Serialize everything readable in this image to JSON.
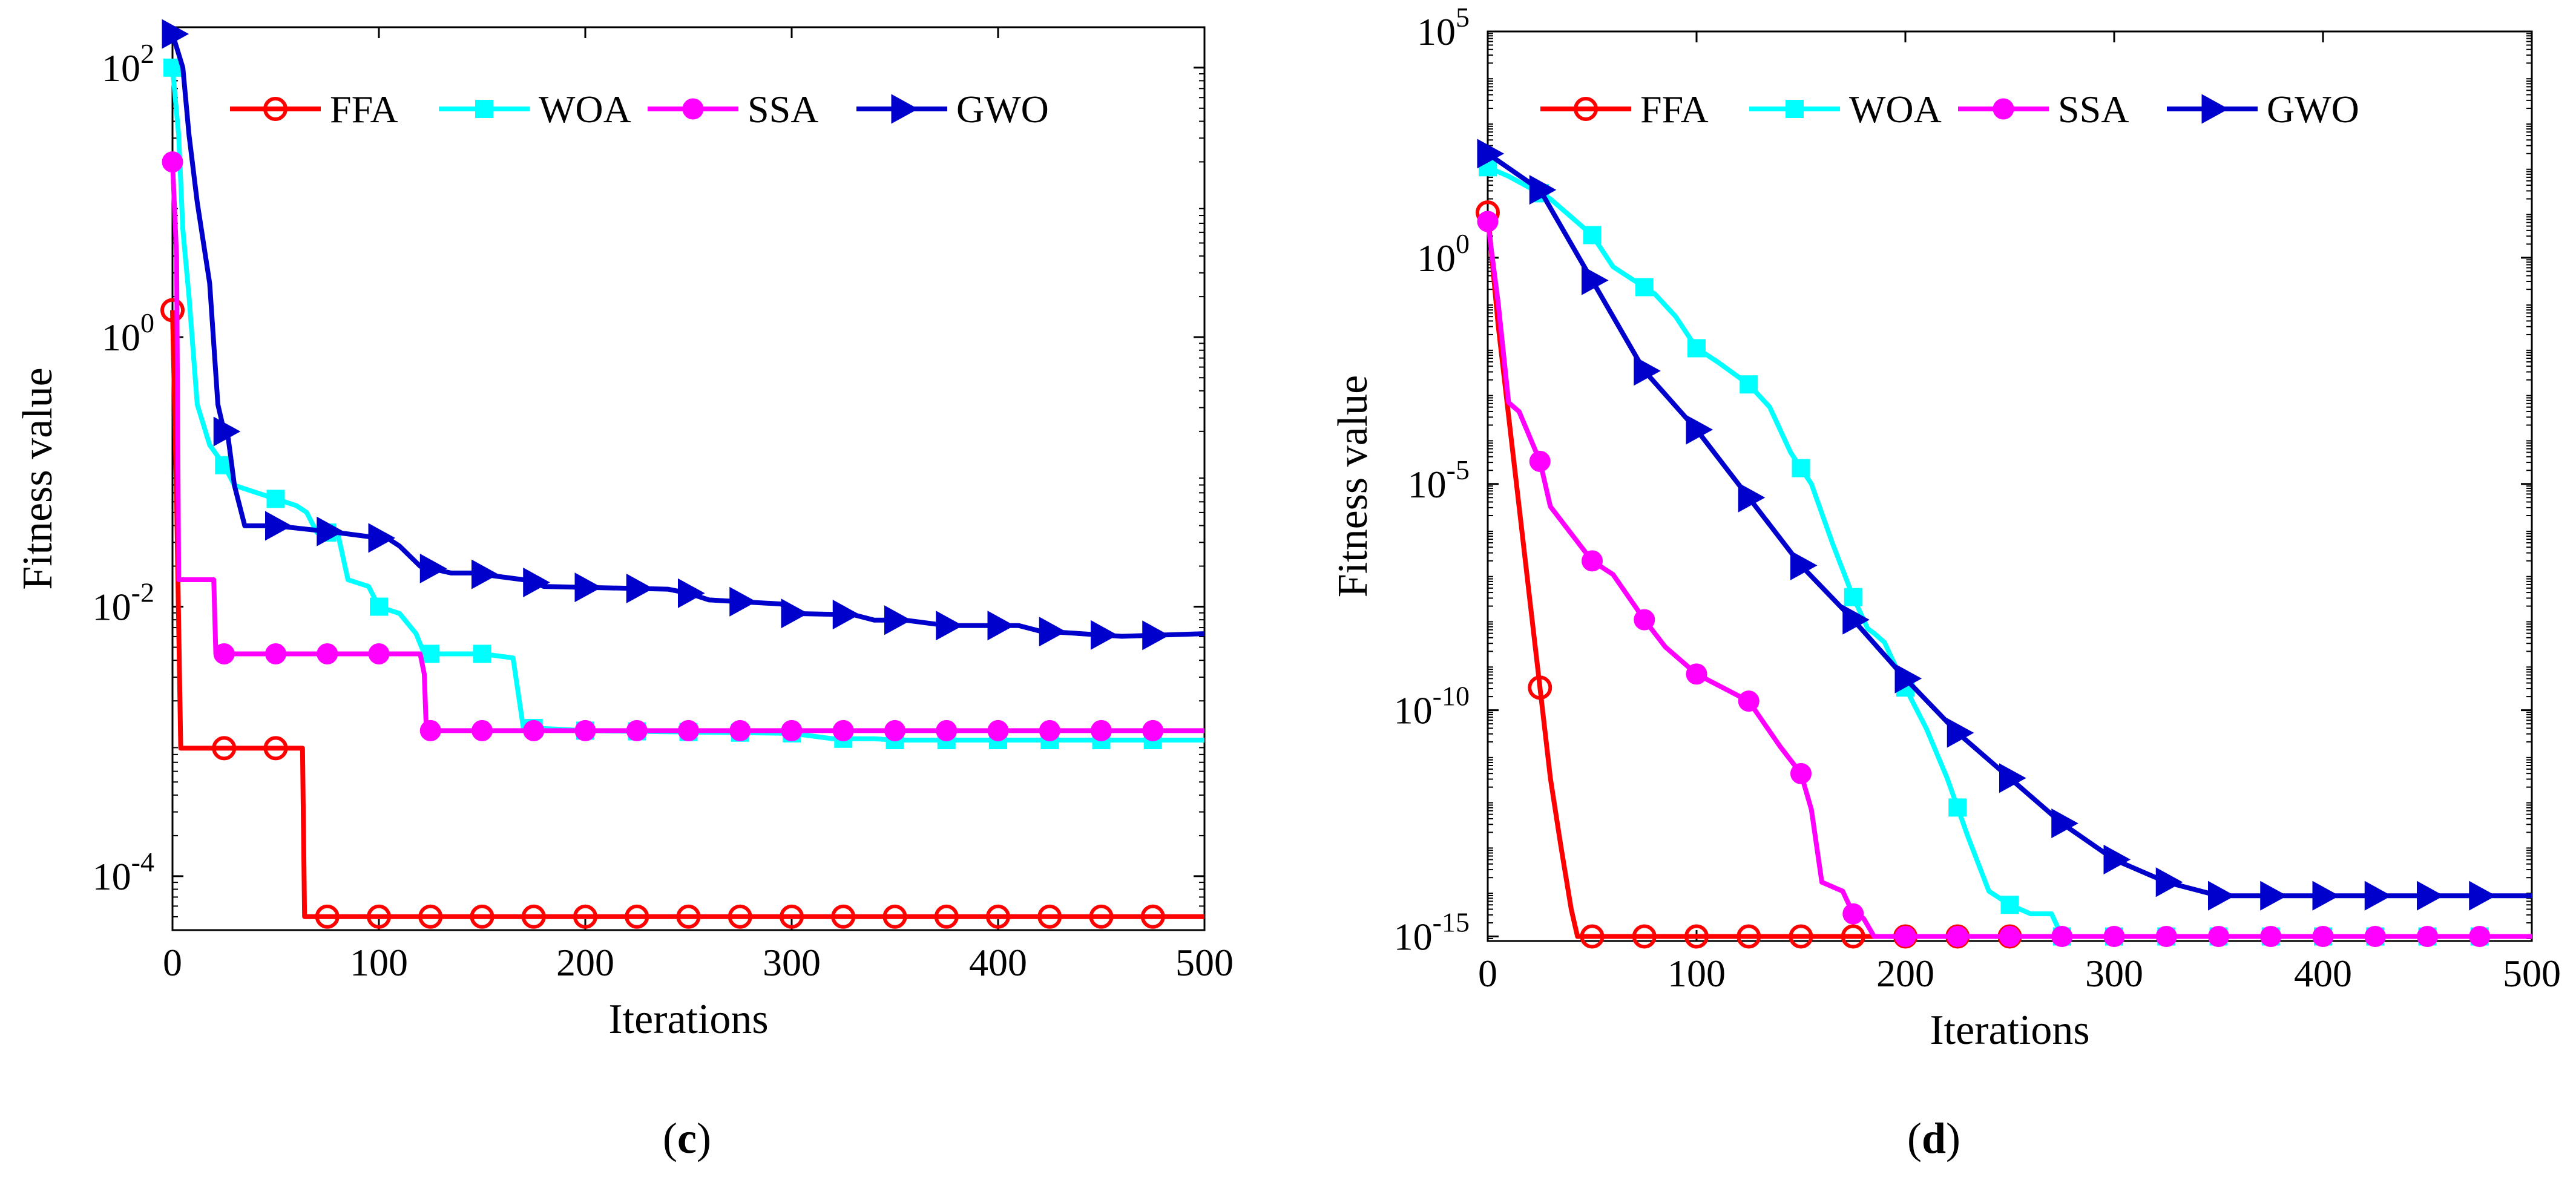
{
  "chart_data": [
    {
      "id": "c",
      "type": "line",
      "panel_label_open": "(",
      "panel_label": "c",
      "panel_label_close": ")",
      "xlabel": "Iterations",
      "ylabel": "Fitness value",
      "xlim": [
        0,
        500
      ],
      "ylog_lim": [
        -4.4,
        2.3
      ],
      "x_ticks": [
        0,
        100,
        200,
        300,
        400,
        500
      ],
      "x_tick_labels": [
        "0",
        "100",
        "200",
        "300",
        "400",
        "500"
      ],
      "y_ticks": [
        -4,
        -2,
        0,
        2
      ],
      "y_tick_labels": [
        {
          "base": "10",
          "exp": "-4"
        },
        {
          "base": "10",
          "exp": "-2"
        },
        {
          "base": "10",
          "exp": "0"
        },
        {
          "base": "10",
          "exp": "2"
        }
      ],
      "legend": [
        "FFA",
        "WOA",
        "SSA",
        "GWO"
      ],
      "series": [
        {
          "name": "FFA",
          "color": "#ff0000",
          "marker": "circle-open",
          "x": [
            0,
            2,
            4,
            63,
            64,
            500
          ],
          "log10y": [
            0.2,
            -1.2,
            -3.05,
            -3.05,
            -4.3,
            -4.3
          ],
          "marker_x": [
            0,
            25,
            50,
            75,
            100,
            125,
            150,
            175,
            200,
            225,
            250,
            275,
            300,
            325,
            350,
            375,
            400,
            425,
            450,
            475
          ]
        },
        {
          "name": "WOA",
          "color": "#00ffff",
          "marker": "square-filled",
          "x": [
            0,
            3,
            5,
            8,
            12,
            18,
            25,
            30,
            40,
            50,
            60,
            65,
            70,
            80,
            85,
            95,
            100,
            110,
            118,
            122,
            150,
            165,
            170,
            175,
            200,
            250,
            300,
            320,
            340,
            350,
            400,
            450,
            500
          ],
          "log10y": [
            2.0,
            1.5,
            0.8,
            0.3,
            -0.5,
            -0.8,
            -0.95,
            -1.1,
            -1.15,
            -1.2,
            -1.25,
            -1.3,
            -1.45,
            -1.45,
            -1.8,
            -1.85,
            -2.0,
            -2.05,
            -2.2,
            -2.35,
            -2.35,
            -2.38,
            -2.9,
            -2.9,
            -2.92,
            -2.93,
            -2.94,
            -2.98,
            -2.98,
            -2.99,
            -2.99,
            -2.99,
            -2.99
          ],
          "marker_x": [
            0,
            25,
            50,
            75,
            100,
            125,
            150,
            175,
            200,
            225,
            250,
            275,
            300,
            325,
            350,
            375,
            400,
            425,
            450,
            475
          ]
        },
        {
          "name": "SSA",
          "color": "#ff00ff",
          "marker": "circle-filled",
          "x": [
            0,
            2,
            3,
            8,
            9,
            20,
            21,
            118,
            120,
            122,
            123,
            500
          ],
          "log10y": [
            1.3,
            0.6,
            -1.8,
            -1.8,
            -1.8,
            -1.8,
            -2.35,
            -2.35,
            -2.35,
            -2.5,
            -2.92,
            -2.92
          ],
          "marker_x": [
            0,
            25,
            50,
            75,
            100,
            125,
            150,
            175,
            200,
            225,
            250,
            275,
            300,
            325,
            350,
            375,
            400,
            425,
            450,
            475
          ]
        },
        {
          "name": "GWO",
          "color": "#0000cd",
          "marker": "triangle-right",
          "x": [
            0,
            5,
            8,
            12,
            18,
            22,
            25,
            27,
            30,
            35,
            50,
            80,
            105,
            110,
            120,
            135,
            145,
            170,
            175,
            180,
            240,
            250,
            260,
            295,
            300,
            330,
            340,
            345,
            355,
            375,
            380,
            410,
            420,
            440,
            460,
            500
          ],
          "log10y": [
            2.25,
            2.0,
            1.5,
            1.0,
            0.4,
            -0.5,
            -0.7,
            -0.75,
            -1.1,
            -1.4,
            -1.4,
            -1.45,
            -1.5,
            -1.55,
            -1.7,
            -1.75,
            -1.75,
            -1.8,
            -1.82,
            -1.85,
            -1.87,
            -1.9,
            -1.95,
            -1.98,
            -2.05,
            -2.06,
            -2.1,
            -2.1,
            -2.1,
            -2.14,
            -2.14,
            -2.14,
            -2.18,
            -2.2,
            -2.22,
            -2.2
          ],
          "marker_x": [
            0,
            25,
            50,
            75,
            100,
            125,
            150,
            175,
            200,
            225,
            250,
            275,
            300,
            325,
            350,
            375,
            400,
            425,
            450,
            475
          ]
        }
      ]
    },
    {
      "id": "d",
      "type": "line",
      "panel_label_open": "(",
      "panel_label": "d",
      "panel_label_close": ")",
      "xlabel": "Iterations",
      "ylabel": "Fitness value",
      "xlim": [
        0,
        500
      ],
      "ylog_lim": [
        -15.1,
        5
      ],
      "x_ticks": [
        0,
        100,
        200,
        300,
        400,
        500
      ],
      "x_tick_labels": [
        "0",
        "100",
        "200",
        "300",
        "400",
        "500"
      ],
      "y_ticks": [
        -15,
        -10,
        -5,
        0,
        5
      ],
      "y_tick_labels": [
        {
          "base": "10",
          "exp": "-15"
        },
        {
          "base": "10",
          "exp": "-10"
        },
        {
          "base": "10",
          "exp": "-5"
        },
        {
          "base": "10",
          "exp": "0"
        },
        {
          "base": "10",
          "exp": "5"
        }
      ],
      "legend": [
        "FFA",
        "WOA",
        "SSA",
        "GWO"
      ],
      "series": [
        {
          "name": "FFA",
          "color": "#ff0000",
          "marker": "circle-open",
          "x": [
            0,
            5,
            10,
            15,
            20,
            25,
            30,
            35,
            40,
            43,
            50,
            500
          ],
          "log10y": [
            1.0,
            -1.5,
            -3.5,
            -5.5,
            -7.5,
            -9.5,
            -11.5,
            -13.0,
            -14.4,
            -15.0,
            -15.0,
            -15.0
          ],
          "marker_x": [
            0,
            25,
            50,
            75,
            100,
            125,
            150,
            175,
            200,
            225,
            250
          ]
        },
        {
          "name": "WOA",
          "color": "#00ffff",
          "marker": "square-filled",
          "x": [
            0,
            10,
            30,
            50,
            60,
            70,
            80,
            90,
            100,
            110,
            125,
            135,
            145,
            155,
            165,
            175,
            182,
            185,
            190,
            200,
            210,
            220,
            230,
            240,
            250,
            260,
            270,
            275,
            500
          ],
          "log10y": [
            2.0,
            1.8,
            1.3,
            0.5,
            -0.2,
            -0.5,
            -0.8,
            -1.3,
            -2.0,
            -2.3,
            -2.8,
            -3.3,
            -4.3,
            -5.0,
            -6.3,
            -7.5,
            -8.2,
            -8.3,
            -8.5,
            -9.5,
            -10.4,
            -11.5,
            -12.8,
            -14.0,
            -14.3,
            -14.5,
            -14.5,
            -15.0,
            -15.0
          ],
          "marker_x": [
            0,
            25,
            50,
            75,
            100,
            125,
            150,
            175,
            200,
            225,
            250,
            275,
            300,
            325,
            350,
            375,
            400,
            425,
            450,
            475
          ]
        },
        {
          "name": "SSA",
          "color": "#ff00ff",
          "marker": "circle-filled",
          "x": [
            0,
            5,
            10,
            15,
            25,
            30,
            50,
            60,
            75,
            85,
            100,
            125,
            140,
            150,
            155,
            160,
            170,
            175,
            180,
            185,
            500
          ],
          "log10y": [
            0.8,
            -1.0,
            -3.2,
            -3.4,
            -4.5,
            -5.5,
            -6.7,
            -7.0,
            -8.0,
            -8.6,
            -9.2,
            -9.8,
            -10.8,
            -11.4,
            -12.2,
            -13.8,
            -14.0,
            -14.5,
            -14.6,
            -15.0,
            -15.0
          ],
          "marker_x": [
            0,
            25,
            50,
            75,
            100,
            125,
            150,
            175,
            200,
            225,
            250,
            275,
            300,
            325,
            350,
            375,
            400,
            425,
            450,
            475
          ]
        },
        {
          "name": "GWO",
          "color": "#0000cd",
          "marker": "triangle-right",
          "x": [
            0,
            25,
            50,
            75,
            100,
            125,
            150,
            175,
            200,
            225,
            250,
            275,
            300,
            325,
            350,
            375,
            400,
            425,
            450,
            475,
            500
          ],
          "log10y": [
            2.3,
            1.5,
            -0.5,
            -2.5,
            -3.8,
            -5.3,
            -6.8,
            -8.0,
            -9.3,
            -10.5,
            -11.5,
            -12.5,
            -13.3,
            -13.8,
            -14.1,
            -14.1,
            -14.1,
            -14.1,
            -14.1,
            -14.1,
            -14.1
          ],
          "marker_x": [
            0,
            25,
            50,
            75,
            100,
            125,
            150,
            175,
            200,
            225,
            250,
            275,
            300,
            325,
            350,
            375,
            400,
            425,
            450,
            475
          ]
        }
      ]
    }
  ]
}
